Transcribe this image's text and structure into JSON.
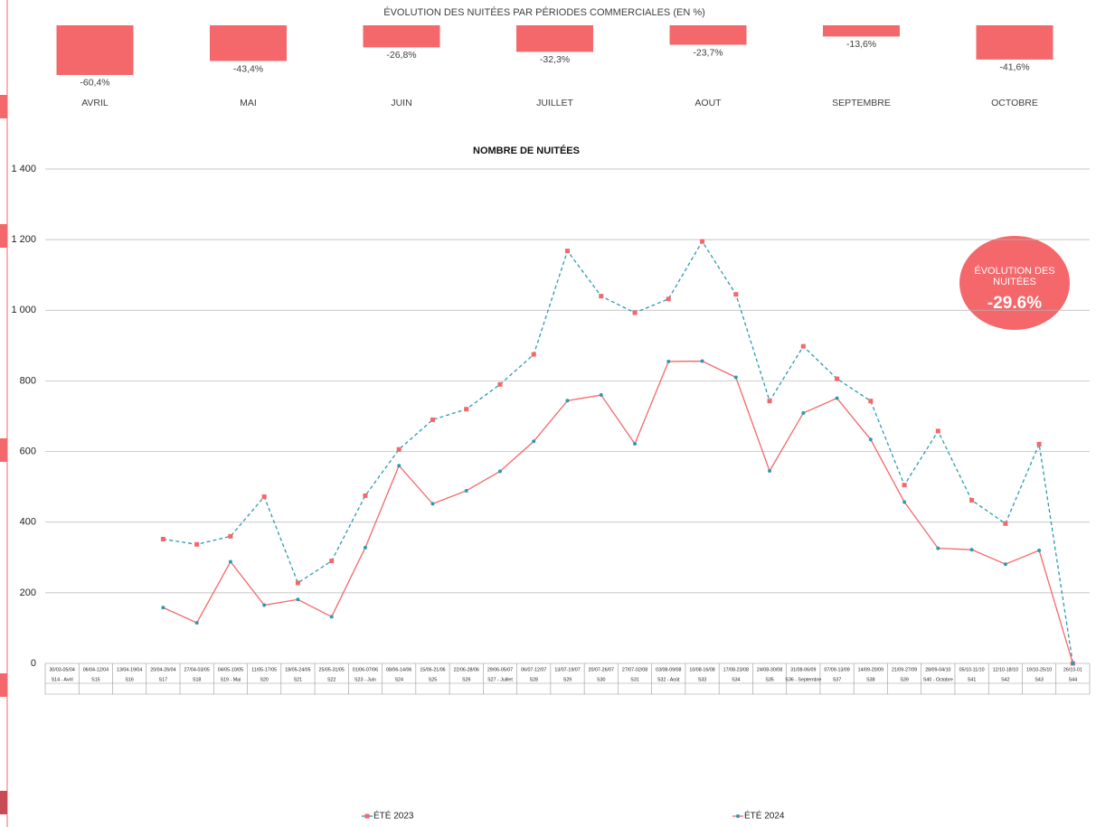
{
  "chart_data": [
    {
      "type": "bar",
      "title": "ÉVOLUTION DES NUITÉES PAR PÉRIODES COMMERCIALES (EN %)",
      "categories": [
        "AVRIL",
        "MAI",
        "JUIN",
        "JUILLET",
        "AOUT",
        "SEPTEMBRE",
        "OCTOBRE"
      ],
      "values": [
        -60.4,
        -43.4,
        -26.8,
        -32.3,
        -23.7,
        -13.6,
        -41.6
      ],
      "value_labels": [
        "-60,4%",
        "-43,4%",
        "-26,8%",
        "-32,3%",
        "-23,7%",
        "-13,6%",
        "-41,6%"
      ],
      "color": "#f4676a"
    },
    {
      "type": "line",
      "title": "NOMBRE DE NUITÉES",
      "category_ranges": [
        "30/03-05/04",
        "06/04-12/04",
        "13/04-19/04",
        "20/04-26/04",
        "27/04-03/05",
        "04/05-10/05",
        "11/05-17/05",
        "18/05-24/05",
        "25/05-31/05",
        "01/06-07/06",
        "08/06-14/06",
        "15/06-21/06",
        "22/06-28/06",
        "29/06-05/07",
        "06/07-12/07",
        "13/07-19/07",
        "20/07-26/07",
        "27/07-02/08",
        "03/08-09/08",
        "10/08-16/08",
        "17/08-23/08",
        "24/08-30/08",
        "31/08-06/09",
        "07/09-13/09",
        "14/09-20/09",
        "21/09-27/09",
        "28/09-04/10",
        "05/10-11/10",
        "12/10-18/10",
        "19/10-25/10",
        "26/10-01"
      ],
      "categories": [
        "S14 - Avril",
        "S15",
        "S16",
        "S17",
        "S18",
        "S19 - Mai",
        "S20",
        "S21",
        "S22",
        "S23 - Juin",
        "S24",
        "S25",
        "S26",
        "S27 - Juillet",
        "S28",
        "S29",
        "S30",
        "S31",
        "S32 - Août",
        "S33",
        "S34",
        "S35",
        "S36 - Septembre",
        "S37",
        "S38",
        "S39",
        "S40 - Octobre",
        "S41",
        "S42",
        "S43",
        "S44"
      ],
      "series": [
        {
          "name": "ÉTÉ 2023",
          "color": "#2a9bb0",
          "marker_color": "#f4676a",
          "dashed": true,
          "values": [
            null,
            null,
            null,
            352,
            337,
            360,
            472,
            228,
            290,
            475,
            606,
            690,
            720,
            790,
            875,
            1168,
            1040,
            993,
            1032,
            1195,
            1045,
            743,
            898,
            806,
            743,
            505,
            658,
            462,
            396,
            621,
            0
          ]
        },
        {
          "name": "ÉTÉ 2024",
          "color": "#f4676a",
          "marker_color": "#2a9bb0",
          "dashed": false,
          "values": [
            null,
            null,
            null,
            158,
            115,
            288,
            165,
            181,
            132,
            328,
            560,
            452,
            489,
            544,
            629,
            744,
            760,
            622,
            855,
            856,
            810,
            545,
            709,
            751,
            634,
            457,
            326,
            322,
            281,
            320,
            0
          ]
        }
      ],
      "ylim": [
        0,
        1400
      ],
      "yticks": [
        0,
        200,
        400,
        600,
        800,
        {
          "value": 1000,
          "label": "1 000"
        },
        {
          "value": 1200,
          "label": "1 200"
        },
        {
          "value": 1400,
          "label": "1 400"
        }
      ],
      "grid": true,
      "annotation": {
        "label": "ÉVOLUTION DES NUITÉES",
        "value": "-29.6%"
      }
    }
  ]
}
